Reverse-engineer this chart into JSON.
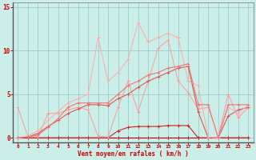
{
  "xlabel": "Vent moyen/en rafales ( km/h )",
  "xlim": [
    -0.5,
    23.5
  ],
  "ylim": [
    -0.5,
    15.5
  ],
  "yticks": [
    0,
    5,
    10,
    15
  ],
  "xticks": [
    0,
    1,
    2,
    3,
    4,
    5,
    6,
    7,
    8,
    9,
    10,
    11,
    12,
    13,
    14,
    15,
    16,
    17,
    18,
    19,
    20,
    21,
    22,
    23
  ],
  "bg_color": "#cceee8",
  "grid_color": "#99cccc",
  "text_color": "#cc0000",
  "figsize": [
    3.2,
    2.0
  ],
  "dpi": 100,
  "series": [
    {
      "x": [
        0,
        1,
        2,
        3,
        4,
        5,
        6,
        7,
        8,
        9,
        10,
        11,
        12,
        13,
        14,
        15,
        16,
        17,
        18,
        19,
        20,
        21,
        22,
        23
      ],
      "y": [
        0,
        0,
        0,
        0,
        0,
        0,
        0,
        0,
        0,
        0,
        0,
        0,
        0,
        0,
        0,
        0,
        0,
        0,
        0,
        0,
        0,
        0,
        0,
        0
      ],
      "color": "#aa0000",
      "lw": 0.8,
      "ms": 2.5
    },
    {
      "x": [
        0,
        1,
        2,
        3,
        4,
        5,
        6,
        7,
        8,
        9,
        10,
        11,
        12,
        13,
        14,
        15,
        16,
        17,
        18,
        19,
        20,
        21,
        22,
        23
      ],
      "y": [
        0,
        0,
        0,
        0,
        0,
        0,
        0,
        0,
        0,
        0,
        0.8,
        1.2,
        1.3,
        1.3,
        1.3,
        1.4,
        1.4,
        1.4,
        0.0,
        0,
        0,
        0,
        0,
        0
      ],
      "color": "#cc2222",
      "lw": 0.8,
      "ms": 2.5
    },
    {
      "x": [
        0,
        1,
        2,
        3,
        4,
        5,
        6,
        7,
        8,
        9,
        10,
        11,
        12,
        13,
        14,
        15,
        16,
        17,
        18,
        19,
        20,
        21,
        22,
        23
      ],
      "y": [
        3.5,
        0.1,
        0.1,
        2.8,
        2.8,
        3.2,
        3.5,
        3.2,
        0.2,
        0.1,
        3.5,
        6.5,
        3.0,
        6.5,
        10.3,
        11.2,
        6.5,
        5.2,
        3.3,
        3.5,
        0.1,
        5.0,
        2.3,
        3.5
      ],
      "color": "#ff9999",
      "lw": 0.7,
      "ms": 2.5
    },
    {
      "x": [
        0,
        1,
        2,
        3,
        4,
        5,
        6,
        7,
        8,
        9,
        10,
        11,
        12,
        13,
        14,
        15,
        16,
        17,
        18,
        19,
        20,
        21,
        22,
        23
      ],
      "y": [
        0,
        0.1,
        0.5,
        1.3,
        2.0,
        2.8,
        3.3,
        3.8,
        3.8,
        3.7,
        4.5,
        5.0,
        5.8,
        6.5,
        7.0,
        7.5,
        8.0,
        8.2,
        3.0,
        0,
        0,
        2.5,
        3.2,
        3.5
      ],
      "color": "#dd5555",
      "lw": 0.8,
      "ms": 2.5
    },
    {
      "x": [
        0,
        1,
        2,
        3,
        4,
        5,
        6,
        7,
        8,
        9,
        10,
        11,
        12,
        13,
        14,
        15,
        16,
        17,
        18,
        19,
        20,
        21,
        22,
        23
      ],
      "y": [
        0,
        0.2,
        0.8,
        2.0,
        3.0,
        4.0,
        4.5,
        5.0,
        11.5,
        6.5,
        7.5,
        9.0,
        13.2,
        11.0,
        11.5,
        12.0,
        11.5,
        6.5,
        6.0,
        0.1,
        0,
        3.5,
        2.8,
        3.8
      ],
      "color": "#ffaaaa",
      "lw": 0.7,
      "ms": 2.5
    },
    {
      "x": [
        0,
        1,
        2,
        3,
        4,
        5,
        6,
        7,
        8,
        9,
        10,
        11,
        12,
        13,
        14,
        15,
        16,
        17,
        18,
        19,
        20,
        21,
        22,
        23
      ],
      "y": [
        0,
        0.1,
        0.3,
        1.2,
        2.2,
        3.5,
        4.0,
        4.0,
        4.0,
        4.0,
        5.0,
        6.0,
        6.5,
        7.2,
        7.5,
        8.0,
        8.2,
        8.5,
        3.8,
        3.8,
        0,
        3.8,
        3.8,
        3.8
      ],
      "color": "#ee7777",
      "lw": 0.8,
      "ms": 2.5
    }
  ]
}
